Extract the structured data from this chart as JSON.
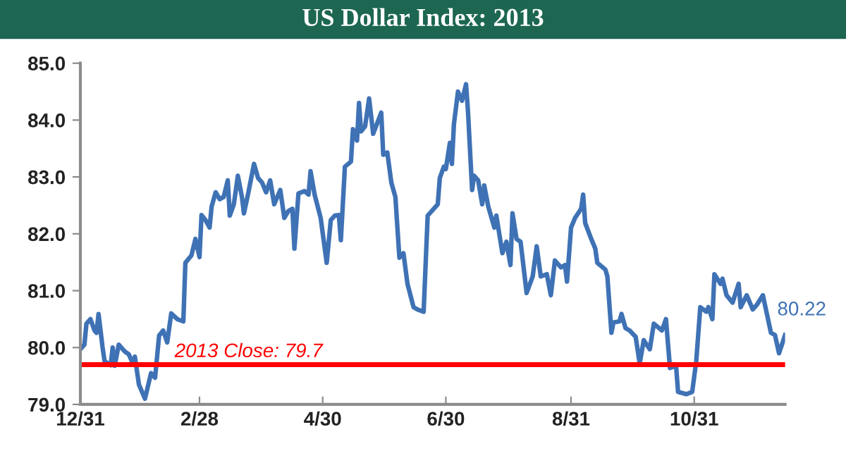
{
  "chart_data": {
    "type": "line",
    "title": "US Dollar Index: 2013",
    "x": [
      "2012-12-31",
      "2013-01-02",
      "2013-01-03",
      "2013-01-05",
      "2013-01-07",
      "2013-01-08",
      "2013-01-09",
      "2013-01-11",
      "2013-01-12",
      "2013-01-15",
      "2013-01-16",
      "2013-01-17",
      "2013-01-19",
      "2013-01-22",
      "2013-01-24",
      "2013-01-26",
      "2013-01-27",
      "2013-01-29",
      "2013-02-01",
      "2013-02-04",
      "2013-02-06",
      "2013-02-08",
      "2013-02-10",
      "2013-02-12",
      "2013-02-14",
      "2013-02-17",
      "2013-02-20",
      "2013-02-21",
      "2013-02-24",
      "2013-02-26",
      "2013-02-28",
      "2013-03-01",
      "2013-03-03",
      "2013-03-05",
      "2013-03-06",
      "2013-03-08",
      "2013-03-10",
      "2013-03-12",
      "2013-03-14",
      "2013-03-15",
      "2013-03-17",
      "2013-03-19",
      "2013-03-21",
      "2013-03-22",
      "2013-03-24",
      "2013-03-27",
      "2013-03-29",
      "2013-03-31",
      "2013-04-02",
      "2013-04-04",
      "2013-04-06",
      "2013-04-09",
      "2013-04-11",
      "2013-04-13",
      "2013-04-15",
      "2013-04-16",
      "2013-04-18",
      "2013-04-21",
      "2013-04-23",
      "2013-04-24",
      "2013-04-26",
      "2013-04-29",
      "2013-05-02",
      "2013-05-04",
      "2013-05-06",
      "2013-05-08",
      "2013-05-09",
      "2013-05-11",
      "2013-05-14",
      "2013-05-15",
      "2013-05-17",
      "2013-05-18",
      "2013-05-19",
      "2013-05-21",
      "2013-05-23",
      "2013-05-25",
      "2013-05-29",
      "2013-05-30",
      "2013-06-01",
      "2013-06-03",
      "2013-06-05",
      "2013-06-07",
      "2013-06-09",
      "2013-06-11",
      "2013-06-14",
      "2013-06-16",
      "2013-06-19",
      "2013-06-21",
      "2013-06-24",
      "2013-06-26",
      "2013-06-27",
      "2013-06-29",
      "2013-06-30",
      "2013-07-02",
      "2013-07-03",
      "2013-07-04",
      "2013-07-06",
      "2013-07-08",
      "2013-07-10",
      "2013-07-11",
      "2013-07-13",
      "2013-07-14",
      "2013-07-16",
      "2013-07-18",
      "2013-07-19",
      "2013-07-21",
      "2013-07-24",
      "2013-07-25",
      "2013-07-28",
      "2013-07-30",
      "2013-08-01",
      "2013-08-02",
      "2013-08-04",
      "2013-08-06",
      "2013-08-09",
      "2013-08-12",
      "2013-08-14",
      "2013-08-16",
      "2013-08-19",
      "2013-08-21",
      "2013-08-23",
      "2013-08-26",
      "2013-08-28",
      "2013-08-29",
      "2013-08-31",
      "2013-09-02",
      "2013-09-05",
      "2013-09-06",
      "2013-09-07",
      "2013-09-10",
      "2013-09-12",
      "2013-09-13",
      "2013-09-17",
      "2013-09-18",
      "2013-09-20",
      "2013-09-21",
      "2013-09-24",
      "2013-09-25",
      "2013-09-27",
      "2013-09-29",
      "2013-10-02",
      "2013-10-04",
      "2013-10-06",
      "2013-10-09",
      "2013-10-11",
      "2013-10-15",
      "2013-10-17",
      "2013-10-19",
      "2013-10-22",
      "2013-10-23",
      "2013-10-27",
      "2013-10-30",
      "2013-11-01",
      "2013-11-03",
      "2013-11-06",
      "2013-11-07",
      "2013-11-09",
      "2013-11-10",
      "2013-11-13",
      "2013-11-14",
      "2013-11-16",
      "2013-11-19",
      "2013-11-22",
      "2013-11-23",
      "2013-11-26",
      "2013-11-29",
      "2013-12-01",
      "2013-12-04",
      "2013-12-06",
      "2013-12-08",
      "2013-12-10",
      "2013-12-12",
      "2013-12-15"
    ],
    "series": [
      {
        "color": "#3f72b5",
        "values": [
          79.97,
          80.05,
          80.42,
          80.5,
          80.3,
          80.26,
          80.59,
          80.0,
          79.76,
          79.69,
          80.0,
          79.68,
          80.05,
          79.93,
          79.88,
          79.72,
          79.84,
          79.35,
          79.1,
          79.55,
          79.47,
          80.21,
          80.3,
          80.09,
          80.6,
          80.5,
          80.46,
          81.49,
          81.62,
          81.91,
          81.59,
          82.33,
          82.24,
          82.11,
          82.48,
          82.73,
          82.61,
          82.65,
          82.94,
          82.32,
          82.52,
          83.02,
          82.65,
          82.36,
          82.69,
          83.23,
          82.98,
          82.9,
          82.73,
          82.94,
          82.52,
          82.77,
          82.28,
          82.4,
          82.44,
          81.74,
          82.71,
          82.75,
          82.69,
          83.1,
          82.69,
          82.28,
          81.49,
          82.24,
          82.32,
          82.33,
          81.89,
          83.18,
          83.27,
          83.84,
          83.64,
          84.3,
          83.8,
          83.89,
          84.38,
          83.76,
          84.13,
          83.39,
          83.43,
          82.9,
          82.65,
          81.58,
          81.66,
          81.12,
          80.71,
          80.67,
          80.63,
          82.32,
          82.44,
          82.52,
          82.98,
          83.18,
          83.14,
          83.6,
          83.23,
          83.93,
          84.5,
          84.34,
          84.63,
          84.13,
          82.77,
          83.02,
          82.94,
          82.52,
          82.85,
          82.48,
          82.11,
          82.32,
          81.66,
          81.86,
          81.45,
          82.36,
          81.91,
          81.86,
          80.96,
          81.25,
          81.78,
          81.25,
          81.29,
          80.92,
          81.53,
          81.41,
          81.45,
          81.16,
          82.11,
          82.28,
          82.44,
          82.69,
          82.19,
          81.91,
          81.74,
          81.49,
          81.37,
          81.25,
          80.26,
          80.44,
          80.46,
          80.59,
          80.34,
          80.3,
          80.19,
          79.72,
          80.13,
          79.97,
          80.42,
          80.3,
          80.5,
          79.64,
          79.68,
          79.22,
          79.18,
          79.22,
          79.76,
          80.71,
          80.63,
          80.71,
          80.5,
          81.29,
          81.12,
          81.21,
          80.92,
          80.79,
          81.12,
          80.71,
          80.92,
          80.67,
          80.75,
          80.92,
          80.59,
          80.26,
          80.22,
          79.9,
          80.22
        ]
      }
    ],
    "xlim": [
      "2012-12-31",
      "2013-12-15"
    ],
    "xticks": [
      {
        "value": "2012-12-31",
        "label": "12/31"
      },
      {
        "value": "2013-02-28",
        "label": "2/28"
      },
      {
        "value": "2013-04-30",
        "label": "4/30"
      },
      {
        "value": "2013-06-30",
        "label": "6/30"
      },
      {
        "value": "2013-08-31",
        "label": "8/31"
      },
      {
        "value": "2013-10-31",
        "label": "10/31"
      }
    ],
    "ylim": [
      79.0,
      85.0
    ],
    "yticks": [
      {
        "value": 79.0,
        "label": "79.0"
      },
      {
        "value": 80.0,
        "label": "80.0"
      },
      {
        "value": 81.0,
        "label": "81.0"
      },
      {
        "value": 82.0,
        "label": "82.0"
      },
      {
        "value": 83.0,
        "label": "83.0"
      },
      {
        "value": 84.0,
        "label": "84.0"
      },
      {
        "value": 85.0,
        "label": "85.0"
      }
    ],
    "ref_lines": [
      {
        "axis": "y",
        "value": 79.7,
        "label": "2013 Close: 79.7",
        "color": "#ff0000"
      }
    ],
    "annotations": [
      {
        "text": "80.22",
        "x": "2013-12-15",
        "y": 80.22
      }
    ],
    "grid": false,
    "legend": false
  }
}
